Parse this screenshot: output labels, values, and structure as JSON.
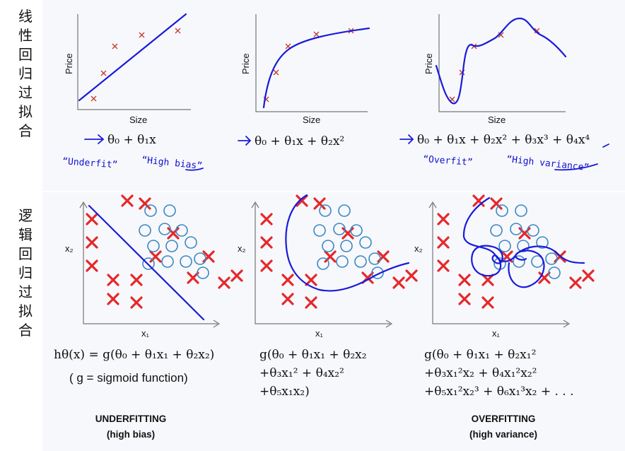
{
  "row_labels": {
    "linear": "线性回归过拟合",
    "logistic": "逻辑回归过拟合"
  },
  "regression_panels": [
    {
      "xlabel": "Size",
      "ylabel": "Price",
      "hypothesis": "θ₀ + θ₁x",
      "notes": [
        "“Underfit”",
        "“High bias”"
      ]
    },
    {
      "xlabel": "Size",
      "ylabel": "Price",
      "hypothesis": "θ₀ + θ₁x + θ₂x²",
      "notes": []
    },
    {
      "xlabel": "Size",
      "ylabel": "Price",
      "hypothesis": "θ₀ + θ₁x + θ₂x² + θ₃x³ + θ₄x⁴",
      "notes": [
        "“Overfit”",
        "“High variance”"
      ]
    }
  ],
  "classification_panels": [
    {
      "xlabel": "x₁",
      "ylabel": "x₂",
      "formula": [
        "hθ(x) = g(θ₀ + θ₁x₁ + θ₂x₂)",
        "( g = sigmoid function)"
      ]
    },
    {
      "xlabel": "x₁",
      "ylabel": "x₂",
      "formula": [
        "g(θ₀ + θ₁x₁ + θ₂x₂",
        "+θ₃x₁² + θ₄x₂²",
        "+θ₅x₁x₂)"
      ]
    },
    {
      "xlabel": "x₁",
      "ylabel": "x₂",
      "formula": [
        "g(θ₀ + θ₁x₁ + θ₂x₁²",
        "+θ₃x₁²x₂ + θ₄x₁²x₂²",
        "+θ₅x₁²x₂³ + θ₆x₁³x₂ + . . ."
      ]
    }
  ],
  "captions": {
    "underfit_title": "UNDERFITTING",
    "underfit_sub": "(high bias)",
    "overfit_title": "OVERFITTING",
    "overfit_sub": "(high variance)"
  },
  "colors": {
    "curve": "#1a1adb",
    "positive": "#e5282b",
    "negative": "#3b87c4"
  }
}
